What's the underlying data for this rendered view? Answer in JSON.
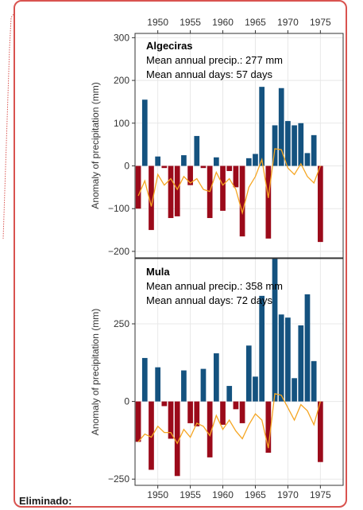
{
  "footer_label": "Eliminado:",
  "colors": {
    "positive": "#14527f",
    "negative": "#9b0a1a",
    "line": "#f5a623",
    "frame": "#d9534f"
  },
  "chart_data": [
    {
      "type": "bar",
      "panel": "Algeciras",
      "annotations": [
        "Algeciras",
        "Mean annual precip.: 277 mm",
        "Mean annual days: 57 days"
      ],
      "ylabel": "Anomaly of precipitation (mm)",
      "xlabel": "",
      "xlim": [
        1946.5,
        1978.5
      ],
      "ylim": [
        -215,
        310
      ],
      "xticks": [
        1950,
        1955,
        1960,
        1965,
        1970,
        1975
      ],
      "yticks": [
        -200,
        -100,
        0,
        100,
        200,
        300
      ],
      "ytick_labels": [
        "−200",
        "−100",
        "0",
        "100",
        "200",
        "300"
      ],
      "x": [
        1947,
        1948,
        1949,
        1950,
        1951,
        1952,
        1953,
        1954,
        1955,
        1956,
        1957,
        1958,
        1959,
        1960,
        1961,
        1962,
        1963,
        1964,
        1965,
        1966,
        1967,
        1968,
        1969,
        1970,
        1971,
        1972,
        1973,
        1974,
        1975,
        1976,
        1977,
        1978
      ],
      "bars": [
        -100,
        155,
        -150,
        22,
        -5,
        -122,
        -118,
        25,
        -45,
        70,
        -5,
        -122,
        20,
        -105,
        -12,
        -50,
        -165,
        18,
        28,
        185,
        -170,
        95,
        182,
        105,
        95,
        100,
        30,
        72,
        -178,
        0,
        0,
        0
      ],
      "line": [
        -70,
        -35,
        -95,
        -20,
        -45,
        -30,
        -55,
        -25,
        -40,
        -30,
        -55,
        -60,
        -15,
        -45,
        -30,
        -55,
        -110,
        -50,
        -25,
        15,
        -75,
        40,
        38,
        -5,
        -20,
        5,
        -25,
        -40,
        0,
        0,
        0,
        0
      ]
    },
    {
      "type": "bar",
      "panel": "Mula",
      "annotations": [
        "Mula",
        "Mean annual precip.: 358 mm",
        "Mean annual days: 72 days"
      ],
      "ylabel": "Anomaly of precipitation (mm)",
      "xlabel": "",
      "xlim": [
        1946.5,
        1978.5
      ],
      "ylim": [
        -270,
        460
      ],
      "xticks": [
        1950,
        1955,
        1960,
        1965,
        1970,
        1975
      ],
      "yticks": [
        -250,
        0,
        250
      ],
      "ytick_labels": [
        "−250",
        "0",
        "250"
      ],
      "x": [
        1947,
        1948,
        1949,
        1950,
        1951,
        1952,
        1953,
        1954,
        1955,
        1956,
        1957,
        1958,
        1959,
        1960,
        1961,
        1962,
        1963,
        1964,
        1965,
        1966,
        1967,
        1968,
        1969,
        1970,
        1971,
        1972,
        1973,
        1974,
        1975,
        1976,
        1977,
        1978
      ],
      "bars": [
        -130,
        140,
        -220,
        110,
        -15,
        -120,
        -240,
        100,
        -70,
        -80,
        105,
        -180,
        155,
        -75,
        50,
        -25,
        -70,
        180,
        80,
        340,
        -165,
        460,
        280,
        270,
        75,
        245,
        345,
        130,
        -195,
        0,
        0,
        0
      ],
      "line": [
        -130,
        -105,
        -115,
        -80,
        -100,
        -100,
        -135,
        -90,
        -115,
        -70,
        -80,
        -110,
        -45,
        -90,
        -60,
        -95,
        -120,
        -75,
        -40,
        -60,
        -150,
        25,
        20,
        -20,
        -60,
        -10,
        -30,
        -75,
        0,
        0,
        0,
        0
      ]
    }
  ]
}
